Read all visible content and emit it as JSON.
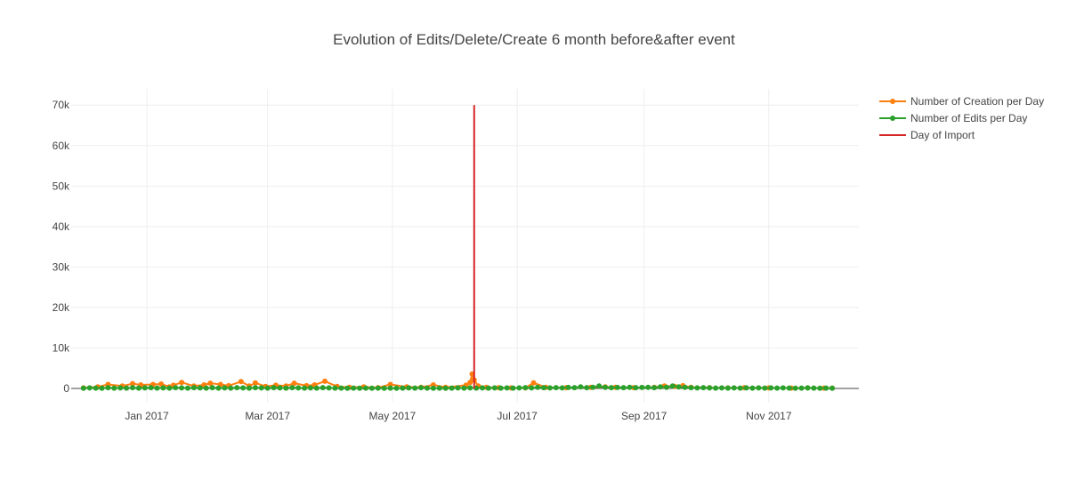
{
  "chart_data": {
    "type": "scatter",
    "title": "Evolution of Edits/Delete/Create 6 month before&after event",
    "xlabel": "",
    "ylabel": "",
    "x_range": [
      "2016-11-25",
      "2017-12-15"
    ],
    "ylim": [
      -3500,
      74000
    ],
    "grid": true,
    "legend_position": "top-right",
    "x_ticks": [
      {
        "date": "2017-01-01",
        "label": "Jan 2017"
      },
      {
        "date": "2017-03-01",
        "label": "Mar 2017"
      },
      {
        "date": "2017-05-01",
        "label": "May 2017"
      },
      {
        "date": "2017-07-01",
        "label": "Jul 2017"
      },
      {
        "date": "2017-09-01",
        "label": "Sep 2017"
      },
      {
        "date": "2017-11-01",
        "label": "Nov 2017"
      }
    ],
    "y_ticks": [
      {
        "value": 0,
        "label": "0"
      },
      {
        "value": 10000,
        "label": "10k"
      },
      {
        "value": 20000,
        "label": "20k"
      },
      {
        "value": 30000,
        "label": "30k"
      },
      {
        "value": 40000,
        "label": "40k"
      },
      {
        "value": 50000,
        "label": "50k"
      },
      {
        "value": 60000,
        "label": "60k"
      },
      {
        "value": 70000,
        "label": "70k"
      }
    ],
    "series": [
      {
        "name": "Number of Creation per Day",
        "color": "#ff7f0e",
        "mode": "lines+markers",
        "points": [
          [
            "2016-12-01",
            150
          ],
          [
            "2016-12-08",
            400
          ],
          [
            "2016-12-13",
            1000
          ],
          [
            "2016-12-20",
            600
          ],
          [
            "2016-12-25",
            1200
          ],
          [
            "2016-12-29",
            900
          ],
          [
            "2017-01-04",
            1000
          ],
          [
            "2017-01-08",
            1100
          ],
          [
            "2017-01-12",
            400
          ],
          [
            "2017-01-14",
            800
          ],
          [
            "2017-01-18",
            1500
          ],
          [
            "2017-01-24",
            600
          ],
          [
            "2017-01-29",
            900
          ],
          [
            "2017-02-01",
            1300
          ],
          [
            "2017-02-06",
            1000
          ],
          [
            "2017-02-10",
            700
          ],
          [
            "2017-02-16",
            1700
          ],
          [
            "2017-02-20",
            600
          ],
          [
            "2017-02-23",
            1400
          ],
          [
            "2017-02-28",
            500
          ],
          [
            "2017-03-05",
            800
          ],
          [
            "2017-03-10",
            600
          ],
          [
            "2017-03-14",
            1300
          ],
          [
            "2017-03-20",
            700
          ],
          [
            "2017-03-24",
            900
          ],
          [
            "2017-03-29",
            1800
          ],
          [
            "2017-04-04",
            500
          ],
          [
            "2017-04-10",
            300
          ],
          [
            "2017-04-17",
            400
          ],
          [
            "2017-04-24",
            200
          ],
          [
            "2017-04-30",
            1000
          ],
          [
            "2017-05-08",
            400
          ],
          [
            "2017-05-15",
            300
          ],
          [
            "2017-05-21",
            900
          ],
          [
            "2017-05-27",
            300
          ],
          [
            "2017-06-06",
            800
          ],
          [
            "2017-06-08",
            1500
          ],
          [
            "2017-06-09",
            3600
          ],
          [
            "2017-06-10",
            2100
          ],
          [
            "2017-06-12",
            600
          ],
          [
            "2017-06-16",
            300
          ],
          [
            "2017-06-22",
            200
          ],
          [
            "2017-06-28",
            150
          ],
          [
            "2017-07-05",
            150
          ],
          [
            "2017-07-09",
            1400
          ],
          [
            "2017-07-15",
            300
          ],
          [
            "2017-07-25",
            200
          ],
          [
            "2017-08-06",
            300
          ],
          [
            "2017-08-13",
            400
          ],
          [
            "2017-08-18",
            300
          ],
          [
            "2017-08-27",
            200
          ],
          [
            "2017-09-06",
            300
          ],
          [
            "2017-09-11",
            600
          ],
          [
            "2017-09-16",
            500
          ],
          [
            "2017-09-20",
            700
          ],
          [
            "2017-09-24",
            300
          ],
          [
            "2017-10-03",
            200
          ],
          [
            "2017-10-12",
            150
          ],
          [
            "2017-10-20",
            200
          ],
          [
            "2017-11-01",
            150
          ],
          [
            "2017-11-12",
            100
          ],
          [
            "2017-11-20",
            150
          ],
          [
            "2017-11-28",
            100
          ],
          [
            "2017-12-02",
            100
          ]
        ]
      },
      {
        "name": "Number of Edits per Day",
        "color": "#2ca02c",
        "mode": "lines+markers",
        "points": [
          [
            "2016-12-01",
            50
          ],
          [
            "2016-12-04",
            150
          ],
          [
            "2016-12-07",
            100
          ],
          [
            "2016-12-10",
            50
          ],
          [
            "2016-12-13",
            200
          ],
          [
            "2016-12-16",
            100
          ],
          [
            "2016-12-19",
            150
          ],
          [
            "2016-12-22",
            100
          ],
          [
            "2016-12-25",
            200
          ],
          [
            "2016-12-28",
            100
          ],
          [
            "2016-12-31",
            150
          ],
          [
            "2017-01-03",
            200
          ],
          [
            "2017-01-06",
            100
          ],
          [
            "2017-01-09",
            150
          ],
          [
            "2017-01-12",
            100
          ],
          [
            "2017-01-15",
            200
          ],
          [
            "2017-01-18",
            150
          ],
          [
            "2017-01-21",
            100
          ],
          [
            "2017-01-24",
            200
          ],
          [
            "2017-01-27",
            150
          ],
          [
            "2017-01-30",
            100
          ],
          [
            "2017-02-02",
            200
          ],
          [
            "2017-02-05",
            100
          ],
          [
            "2017-02-08",
            150
          ],
          [
            "2017-02-11",
            100
          ],
          [
            "2017-02-14",
            200
          ],
          [
            "2017-02-17",
            150
          ],
          [
            "2017-02-20",
            100
          ],
          [
            "2017-02-23",
            200
          ],
          [
            "2017-02-26",
            150
          ],
          [
            "2017-03-01",
            100
          ],
          [
            "2017-03-04",
            200
          ],
          [
            "2017-03-07",
            150
          ],
          [
            "2017-03-10",
            100
          ],
          [
            "2017-03-13",
            200
          ],
          [
            "2017-03-16",
            150
          ],
          [
            "2017-03-19",
            100
          ],
          [
            "2017-03-22",
            150
          ],
          [
            "2017-03-25",
            100
          ],
          [
            "2017-03-28",
            200
          ],
          [
            "2017-03-31",
            150
          ],
          [
            "2017-04-03",
            100
          ],
          [
            "2017-04-06",
            100
          ],
          [
            "2017-04-09",
            50
          ],
          [
            "2017-04-12",
            100
          ],
          [
            "2017-04-15",
            50
          ],
          [
            "2017-04-18",
            100
          ],
          [
            "2017-04-21",
            50
          ],
          [
            "2017-04-24",
            100
          ],
          [
            "2017-04-27",
            50
          ],
          [
            "2017-04-30",
            100
          ],
          [
            "2017-05-03",
            50
          ],
          [
            "2017-05-06",
            100
          ],
          [
            "2017-05-09",
            150
          ],
          [
            "2017-05-12",
            100
          ],
          [
            "2017-05-15",
            200
          ],
          [
            "2017-05-18",
            100
          ],
          [
            "2017-05-21",
            50
          ],
          [
            "2017-05-24",
            100
          ],
          [
            "2017-05-27",
            50
          ],
          [
            "2017-05-30",
            100
          ],
          [
            "2017-06-02",
            150
          ],
          [
            "2017-06-05",
            100
          ],
          [
            "2017-06-08",
            150
          ],
          [
            "2017-06-11",
            100
          ],
          [
            "2017-06-14",
            150
          ],
          [
            "2017-06-17",
            100
          ],
          [
            "2017-06-20",
            150
          ],
          [
            "2017-06-23",
            100
          ],
          [
            "2017-06-26",
            150
          ],
          [
            "2017-06-29",
            100
          ],
          [
            "2017-07-02",
            150
          ],
          [
            "2017-07-05",
            200
          ],
          [
            "2017-07-08",
            150
          ],
          [
            "2017-07-11",
            300
          ],
          [
            "2017-07-14",
            200
          ],
          [
            "2017-07-17",
            150
          ],
          [
            "2017-07-20",
            200
          ],
          [
            "2017-07-23",
            150
          ],
          [
            "2017-07-26",
            250
          ],
          [
            "2017-07-29",
            200
          ],
          [
            "2017-08-01",
            400
          ],
          [
            "2017-08-04",
            200
          ],
          [
            "2017-08-07",
            300
          ],
          [
            "2017-08-10",
            600
          ],
          [
            "2017-08-13",
            300
          ],
          [
            "2017-08-16",
            200
          ],
          [
            "2017-08-19",
            250
          ],
          [
            "2017-08-22",
            200
          ],
          [
            "2017-08-25",
            300
          ],
          [
            "2017-08-28",
            200
          ],
          [
            "2017-08-31",
            250
          ],
          [
            "2017-09-03",
            300
          ],
          [
            "2017-09-06",
            200
          ],
          [
            "2017-09-09",
            400
          ],
          [
            "2017-09-12",
            300
          ],
          [
            "2017-09-15",
            600
          ],
          [
            "2017-09-18",
            400
          ],
          [
            "2017-09-21",
            300
          ],
          [
            "2017-09-24",
            200
          ],
          [
            "2017-09-27",
            150
          ],
          [
            "2017-09-30",
            200
          ],
          [
            "2017-10-03",
            150
          ],
          [
            "2017-10-06",
            100
          ],
          [
            "2017-10-09",
            150
          ],
          [
            "2017-10-12",
            100
          ],
          [
            "2017-10-15",
            150
          ],
          [
            "2017-10-18",
            100
          ],
          [
            "2017-10-21",
            150
          ],
          [
            "2017-10-24",
            100
          ],
          [
            "2017-10-27",
            150
          ],
          [
            "2017-10-30",
            100
          ],
          [
            "2017-11-02",
            150
          ],
          [
            "2017-11-05",
            100
          ],
          [
            "2017-11-08",
            150
          ],
          [
            "2017-11-11",
            100
          ],
          [
            "2017-11-14",
            50
          ],
          [
            "2017-11-17",
            100
          ],
          [
            "2017-11-20",
            150
          ],
          [
            "2017-11-23",
            100
          ],
          [
            "2017-11-26",
            50
          ],
          [
            "2017-11-29",
            100
          ],
          [
            "2017-12-02",
            50
          ]
        ]
      },
      {
        "name": "Day of Import",
        "color": "#d62728",
        "mode": "lines",
        "points": [
          [
            "2017-06-10",
            0
          ],
          [
            "2017-06-10",
            70000
          ]
        ]
      }
    ]
  }
}
